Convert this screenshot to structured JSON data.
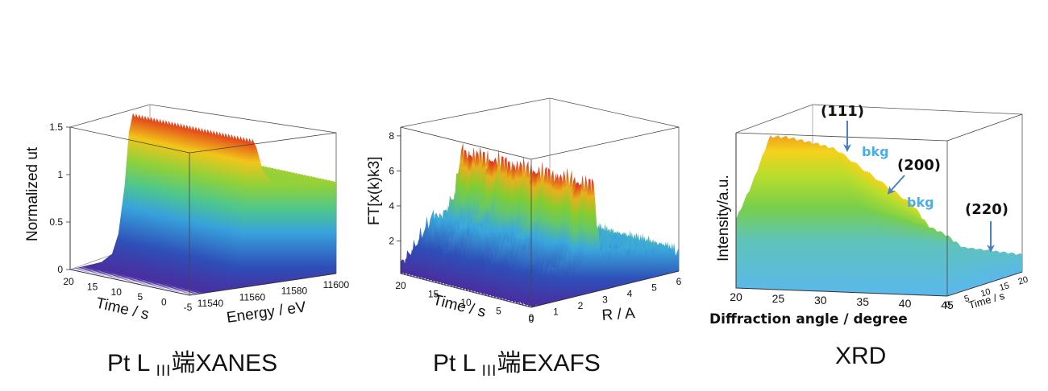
{
  "chart_data": [
    {
      "type": "surface3d",
      "title": "Pt L",
      "title_sub": "III",
      "title_suffix": "端XANES",
      "zlabel": "Normalized ut",
      "xlabel": "Time / s",
      "ylabel": "Energy / eV",
      "z_ticks": [
        "0",
        "0.5",
        "1",
        "1.5"
      ],
      "time_ticks": [
        "20",
        "15",
        "10",
        "5",
        "0",
        "-5"
      ],
      "energy_ticks": [
        "11540",
        "11560",
        "11580",
        "11600"
      ],
      "zlim": [
        0,
        1.5
      ],
      "time_range": [
        -5,
        20
      ],
      "energy_range": [
        11530,
        11600
      ],
      "profile_energy": [
        11530,
        11545,
        11550,
        11553,
        11556,
        11558,
        11560,
        11562,
        11565,
        11570,
        11580,
        11590,
        11600
      ],
      "profile_value": [
        0.0,
        0.03,
        0.1,
        0.3,
        0.8,
        1.35,
        1.55,
        1.45,
        1.2,
        1.05,
        1.0,
        0.98,
        0.97
      ]
    },
    {
      "type": "surface3d",
      "title": "Pt L",
      "title_sub": "III",
      "title_suffix": "端EXAFS",
      "zlabel": "FT[x(k)k3]",
      "xlabel": "Time / s",
      "ylabel": "R / A",
      "z_ticks": [
        "2",
        "4",
        "6",
        "8"
      ],
      "time_ticks": [
        "20",
        "15",
        "10",
        "5",
        "0"
      ],
      "r_ticks": [
        "0",
        "1",
        "2",
        "3",
        "4",
        "5",
        "6"
      ],
      "zlim": [
        0,
        8.5
      ],
      "time_range": [
        0,
        20
      ],
      "r_range": [
        0,
        6
      ],
      "profile_r": [
        0.0,
        0.5,
        1.0,
        1.3,
        1.6,
        1.9,
        2.2,
        2.5,
        2.8,
        3.2,
        3.6,
        4.0,
        4.5,
        5.0,
        5.5,
        6.0
      ],
      "profile_value": [
        0.5,
        1.2,
        2.3,
        2.9,
        2.4,
        3.1,
        3.8,
        6.6,
        2.2,
        1.5,
        1.9,
        1.4,
        1.7,
        1.2,
        1.5,
        1.0
      ]
    },
    {
      "type": "surface3d",
      "title": "XRD",
      "zlabel": "Intensity/a.u.",
      "xlabel": "Diffraction angle / degree",
      "ylabel": "Time / s",
      "angle_ticks": [
        "20",
        "25",
        "30",
        "35",
        "40",
        "45"
      ],
      "time_ticks": [
        "0",
        "5",
        "10",
        "15",
        "20"
      ],
      "angle_range": [
        20,
        45
      ],
      "time_range": [
        0,
        20
      ],
      "profile_angle": [
        20,
        22,
        24,
        26,
        28,
        30,
        32,
        34,
        36,
        38,
        40,
        42,
        44,
        45
      ],
      "profile_value": [
        0.45,
        0.7,
        1.0,
        1.0,
        0.98,
        0.96,
        0.93,
        0.6,
        0.5,
        0.32,
        0.3,
        0.28,
        0.26,
        0.25
      ],
      "annotations": [
        {
          "label": "(111)"
        },
        {
          "label": "(200)"
        },
        {
          "label": "(220)"
        },
        {
          "label": "bkg"
        },
        {
          "label": "bkg"
        }
      ],
      "arrow_color": "#4a7fc0",
      "bkg_color": "#4aaee6"
    }
  ]
}
